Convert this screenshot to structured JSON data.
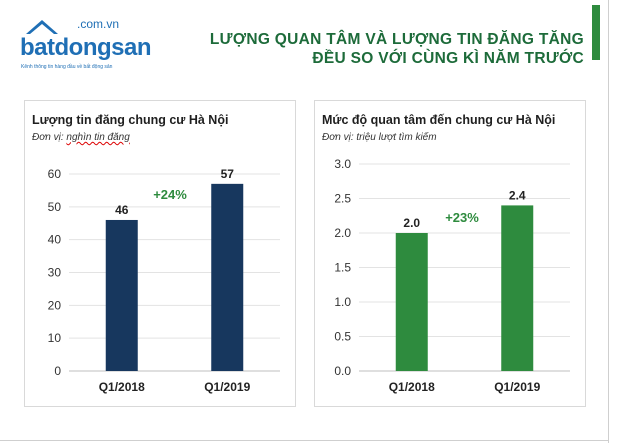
{
  "logo": {
    "domain": ".com.vn",
    "name": "batdongsan",
    "tagline": "Kênh thông tin hàng đầu về bất động sản"
  },
  "header": {
    "title_line1": "LƯỢNG QUAN TÂM VÀ LƯỢNG TIN ĐĂNG TĂNG",
    "title_line2": "ĐỀU SO VỚI CÙNG KÌ NĂM TRƯỚC"
  },
  "colors": {
    "title": "#1d6b3a",
    "left_bars": "#17375e",
    "right_bars": "#2e8b3e",
    "growth_label": "#2e8b3e",
    "accent_bar": "#2e8b3e"
  },
  "chart_data": [
    {
      "type": "bar",
      "title": "Lượng tin đăng chung cư Hà Nội",
      "subtitle_prefix": "Đơn vị: ",
      "subtitle_unit": "nghìn tin đăng",
      "categories": [
        "Q1/2018",
        "Q1/2019"
      ],
      "values": [
        46,
        57
      ],
      "value_labels": [
        "46",
        "57"
      ],
      "ylim": [
        0,
        60
      ],
      "yticks": [
        0,
        10,
        20,
        30,
        40,
        50,
        60
      ],
      "ytick_labels": [
        "0",
        "10",
        "20",
        "30",
        "40",
        "50",
        "60"
      ],
      "grid": true,
      "annotation": "+24%"
    },
    {
      "type": "bar",
      "title": "Mức độ quan tâm đến chung cư Hà Nội",
      "subtitle_prefix": "Đơn vị: ",
      "subtitle_unit": "triệu lượt tìm kiếm",
      "categories": [
        "Q1/2018",
        "Q1/2019"
      ],
      "values": [
        2.0,
        2.4
      ],
      "value_labels": [
        "2.0",
        "2.4"
      ],
      "ylim": [
        0,
        3.0
      ],
      "yticks": [
        0,
        0.5,
        1.0,
        1.5,
        2.0,
        2.5,
        3.0
      ],
      "ytick_labels": [
        "0.0",
        "0.5",
        "1.0",
        "1.5",
        "2.0",
        "2.5",
        "3.0"
      ],
      "grid": true,
      "annotation": "+23%"
    }
  ]
}
